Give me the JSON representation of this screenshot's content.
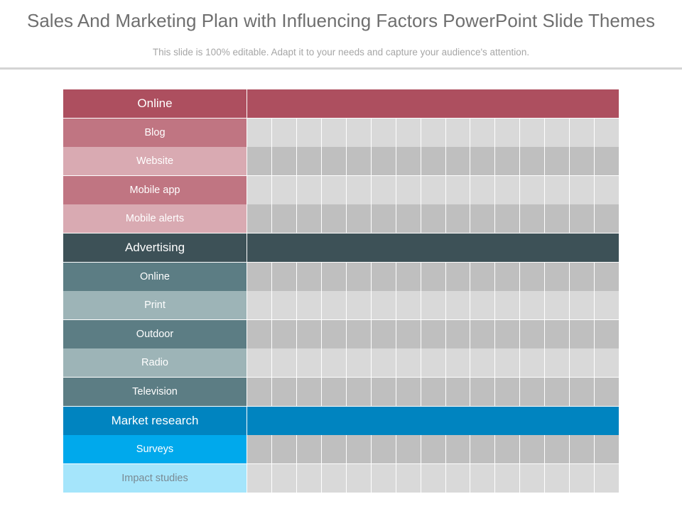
{
  "title": "Sales And Marketing Plan with Influencing Factors PowerPoint Slide Themes",
  "subtitle": "This slide is 100% editable. Adapt it to your needs and capture your audience's attention.",
  "grid_columns": 15,
  "rows": [
    {
      "label": "Online",
      "kind": "header",
      "label_bg": "#ad4f5f",
      "band_bg": "#ad4f5f",
      "label_color": "#ffffff"
    },
    {
      "label": "Blog",
      "kind": "sub",
      "label_bg": "#c07582",
      "shade": "light",
      "label_color": "#ffffff"
    },
    {
      "label": "Website",
      "kind": "sub",
      "label_bg": "#d9aab2",
      "shade": "dark",
      "label_color": "#ffffff"
    },
    {
      "label": "Mobile app",
      "kind": "sub",
      "label_bg": "#c07582",
      "shade": "light",
      "label_color": "#ffffff"
    },
    {
      "label": "Mobile alerts",
      "kind": "sub",
      "label_bg": "#d9aab2",
      "shade": "dark",
      "label_color": "#ffffff"
    },
    {
      "label": "Advertising",
      "kind": "header",
      "label_bg": "#3d5157",
      "band_bg": "#3d5157",
      "label_color": "#ffffff"
    },
    {
      "label": "Online",
      "kind": "sub",
      "label_bg": "#5c7d84",
      "shade": "dark",
      "label_color": "#ffffff"
    },
    {
      "label": "Print",
      "kind": "sub",
      "label_bg": "#9db4b7",
      "shade": "light",
      "label_color": "#ffffff"
    },
    {
      "label": "Outdoor",
      "kind": "sub",
      "label_bg": "#5c7d84",
      "shade": "dark",
      "label_color": "#ffffff"
    },
    {
      "label": "Radio",
      "kind": "sub",
      "label_bg": "#9db4b7",
      "shade": "light",
      "label_color": "#ffffff"
    },
    {
      "label": "Television",
      "kind": "sub",
      "label_bg": "#5c7d84",
      "shade": "dark",
      "label_color": "#ffffff"
    },
    {
      "label": "Market research",
      "kind": "header",
      "label_bg": "#0084c0",
      "band_bg": "#0084c0",
      "label_color": "#ffffff"
    },
    {
      "label": "Surveys",
      "kind": "sub",
      "label_bg": "#00a9ec",
      "shade": "dark",
      "label_color": "#ffffff"
    },
    {
      "label": "Impact studies",
      "kind": "sub",
      "label_bg": "#a5e5fb",
      "shade": "light",
      "label_color": "#7a8a93"
    }
  ]
}
